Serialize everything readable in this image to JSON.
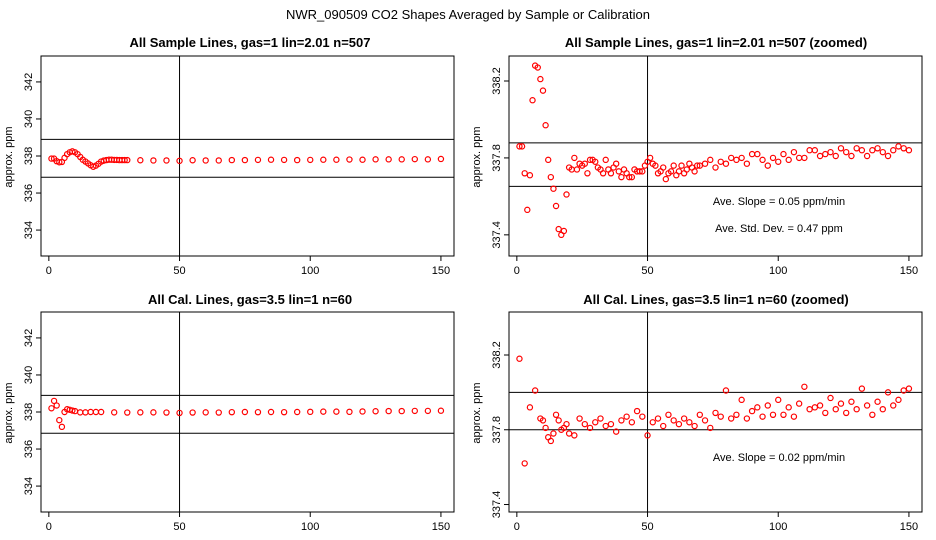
{
  "figure": {
    "title": "NWR_090509  CO2 Shapes Averaged by Sample or Calibration",
    "colors": {
      "points": "#ff0000",
      "lines": "#000000",
      "background": "#ffffff"
    }
  },
  "chart_data": [
    {
      "type": "scatter",
      "title": "All Sample Lines, gas=1 lin=2.01 n=507",
      "xlabel": "",
      "ylabel": "approx. ppm",
      "xlim": [
        -3,
        155
      ],
      "ylim": [
        332.6,
        343.4
      ],
      "xticks": [
        0,
        50,
        100,
        150
      ],
      "yticks": [
        334,
        336,
        338,
        340,
        342
      ],
      "hlines": [
        336.85,
        338.9
      ],
      "vline": 50,
      "series": [
        {
          "name": "averaged shape",
          "x": [
            1,
            2,
            3,
            4,
            5,
            6,
            7,
            8,
            9,
            10,
            11,
            12,
            13,
            14,
            15,
            16,
            17,
            18,
            19,
            20,
            21,
            22,
            23,
            24,
            25,
            26,
            27,
            28,
            29,
            30,
            35,
            40,
            45,
            50,
            55,
            60,
            65,
            70,
            75,
            80,
            85,
            90,
            95,
            100,
            105,
            110,
            115,
            120,
            125,
            130,
            135,
            140,
            145,
            150
          ],
          "y": [
            337.86,
            337.86,
            337.72,
            337.66,
            337.68,
            337.9,
            338.1,
            338.2,
            338.25,
            338.2,
            338.1,
            337.95,
            337.8,
            337.7,
            337.6,
            337.5,
            337.42,
            337.48,
            337.58,
            337.7,
            337.75,
            337.78,
            337.8,
            337.8,
            337.79,
            337.79,
            337.78,
            337.78,
            337.78,
            337.78,
            337.77,
            337.76,
            337.76,
            337.74,
            337.77,
            337.76,
            337.76,
            337.78,
            337.78,
            337.79,
            337.8,
            337.79,
            337.78,
            337.79,
            337.8,
            337.8,
            337.81,
            337.8,
            337.82,
            337.82,
            337.82,
            337.83,
            337.82,
            337.84
          ]
        }
      ]
    },
    {
      "type": "scatter",
      "title": "All Sample Lines, gas=1 lin=2.01 n=507 (zoomed)",
      "xlabel": "",
      "ylabel": "approx. ppm",
      "xlim": [
        -3,
        155
      ],
      "ylim": [
        337.29,
        338.33
      ],
      "xticks": [
        0,
        50,
        100,
        150
      ],
      "yticks": [
        337.4,
        337.8,
        338.2
      ],
      "hlines": [
        337.878,
        337.652
      ],
      "vline": 50,
      "annotations": [
        "Ave. Slope =  0.05  ppm/min",
        "Ave. Std. Dev. =  0.47  ppm"
      ],
      "series": [
        {
          "name": "averaged shape",
          "x": [
            1,
            2,
            3,
            4,
            5,
            6,
            7,
            8,
            9,
            10,
            11,
            12,
            13,
            14,
            15,
            16,
            17,
            18,
            19,
            20,
            21,
            22,
            23,
            24,
            25,
            26,
            27,
            28,
            29,
            30,
            31,
            32,
            33,
            34,
            35,
            36,
            37,
            38,
            39,
            40,
            41,
            42,
            43,
            44,
            45,
            46,
            47,
            48,
            49,
            50,
            51,
            52,
            53,
            54,
            55,
            56,
            57,
            58,
            59,
            60,
            61,
            62,
            63,
            64,
            65,
            66,
            67,
            68,
            69,
            70,
            72,
            74,
            76,
            78,
            80,
            82,
            84,
            86,
            88,
            90,
            92,
            94,
            96,
            98,
            100,
            102,
            104,
            106,
            108,
            110,
            112,
            114,
            116,
            118,
            120,
            122,
            124,
            126,
            128,
            130,
            132,
            134,
            136,
            138,
            140,
            142,
            144,
            146,
            148,
            150
          ],
          "y": [
            337.86,
            337.86,
            337.72,
            337.53,
            337.71,
            338.1,
            338.28,
            338.27,
            338.21,
            338.15,
            337.97,
            337.79,
            337.7,
            337.64,
            337.55,
            337.43,
            337.4,
            337.42,
            337.61,
            337.75,
            337.74,
            337.8,
            337.74,
            337.77,
            337.76,
            337.77,
            337.72,
            337.79,
            337.79,
            337.78,
            337.75,
            337.74,
            337.72,
            337.79,
            337.74,
            337.72,
            337.75,
            337.77,
            337.73,
            337.7,
            337.74,
            337.72,
            337.7,
            337.7,
            337.74,
            337.73,
            337.73,
            337.73,
            337.76,
            337.78,
            337.8,
            337.77,
            337.76,
            337.72,
            337.73,
            337.75,
            337.69,
            337.72,
            337.73,
            337.76,
            337.71,
            337.73,
            337.76,
            337.72,
            337.74,
            337.77,
            337.75,
            337.73,
            337.76,
            337.76,
            337.77,
            337.79,
            337.75,
            337.78,
            337.77,
            337.8,
            337.79,
            337.8,
            337.77,
            337.82,
            337.82,
            337.79,
            337.76,
            337.8,
            337.78,
            337.82,
            337.79,
            337.83,
            337.8,
            337.8,
            337.84,
            337.84,
            337.81,
            337.82,
            337.83,
            337.81,
            337.85,
            337.83,
            337.81,
            337.85,
            337.84,
            337.81,
            337.84,
            337.85,
            337.83,
            337.81,
            337.84,
            337.86,
            337.85,
            337.84
          ]
        }
      ]
    },
    {
      "type": "scatter",
      "title": "All Cal. Lines, gas=3.5 lin=1 n=60",
      "xlabel": "",
      "ylabel": "approx. ppm",
      "xlim": [
        -3,
        155
      ],
      "ylim": [
        332.6,
        343.4
      ],
      "xticks": [
        0,
        50,
        100,
        150
      ],
      "yticks": [
        334,
        336,
        338,
        340,
        342
      ],
      "hlines": [
        336.85,
        338.9
      ],
      "vline": 50,
      "series": [
        {
          "name": "averaged shape",
          "x": [
            1,
            2,
            3,
            4,
            5,
            6,
            7,
            8,
            9,
            10,
            12,
            14,
            16,
            18,
            20,
            25,
            30,
            35,
            40,
            45,
            50,
            55,
            60,
            65,
            70,
            75,
            80,
            85,
            90,
            95,
            100,
            105,
            110,
            115,
            120,
            125,
            130,
            135,
            140,
            145,
            150
          ],
          "y": [
            338.2,
            338.6,
            338.35,
            337.56,
            337.2,
            338.0,
            338.15,
            338.12,
            338.08,
            338.05,
            337.98,
            337.98,
            338.0,
            338.0,
            338.0,
            337.98,
            337.97,
            337.98,
            337.98,
            337.97,
            337.95,
            337.97,
            337.98,
            337.97,
            337.99,
            338.0,
            337.99,
            338.0,
            337.99,
            338.0,
            338.01,
            338.02,
            338.02,
            338.01,
            338.03,
            338.04,
            338.05,
            338.05,
            338.06,
            338.06,
            338.07
          ]
        }
      ]
    },
    {
      "type": "scatter",
      "title": "All Cal. Lines, gas=3.5 lin=1 n=60 (zoomed)",
      "xlabel": "",
      "ylabel": "approx. ppm",
      "xlim": [
        -3,
        155
      ],
      "ylim": [
        337.36,
        338.43
      ],
      "xticks": [
        0,
        50,
        100,
        150
      ],
      "yticks": [
        337.4,
        337.8,
        338.2
      ],
      "hlines": [
        338.0,
        337.8
      ],
      "vline": 50,
      "annotations": [
        "Ave. Slope =  0.02  ppm/min"
      ],
      "series": [
        {
          "name": "averaged shape",
          "x": [
            1,
            3,
            5,
            7,
            9,
            10,
            11,
            12,
            13,
            14,
            15,
            16,
            17,
            18,
            19,
            20,
            22,
            24,
            26,
            28,
            30,
            32,
            34,
            36,
            38,
            40,
            42,
            44,
            46,
            48,
            50,
            52,
            54,
            56,
            58,
            60,
            62,
            64,
            66,
            68,
            70,
            72,
            74,
            76,
            78,
            80,
            82,
            84,
            86,
            88,
            90,
            92,
            94,
            96,
            98,
            100,
            102,
            104,
            106,
            108,
            110,
            112,
            114,
            116,
            118,
            120,
            122,
            124,
            126,
            128,
            130,
            132,
            134,
            136,
            138,
            140,
            142,
            144,
            146,
            148,
            150
          ],
          "y": [
            338.18,
            337.62,
            337.92,
            338.01,
            337.86,
            337.85,
            337.81,
            337.76,
            337.74,
            337.78,
            337.88,
            337.85,
            337.8,
            337.81,
            337.83,
            337.78,
            337.77,
            337.86,
            337.83,
            337.81,
            337.84,
            337.86,
            337.82,
            337.83,
            337.79,
            337.85,
            337.87,
            337.84,
            337.9,
            337.87,
            337.77,
            337.84,
            337.86,
            337.82,
            337.88,
            337.85,
            337.83,
            337.86,
            337.84,
            337.82,
            337.88,
            337.85,
            337.81,
            337.89,
            337.87,
            338.01,
            337.86,
            337.88,
            337.96,
            337.86,
            337.9,
            337.92,
            337.87,
            337.93,
            337.88,
            337.96,
            337.88,
            337.92,
            337.87,
            337.94,
            338.03,
            337.91,
            337.92,
            337.93,
            337.89,
            337.97,
            337.91,
            337.94,
            337.89,
            337.95,
            337.91,
            338.02,
            337.93,
            337.88,
            337.95,
            337.91,
            338.0,
            337.93,
            337.96,
            338.01,
            338.02
          ]
        }
      ]
    }
  ]
}
